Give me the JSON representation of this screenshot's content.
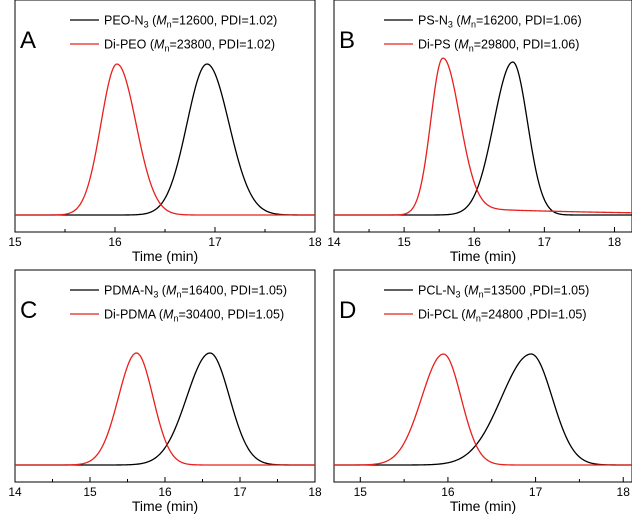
{
  "chart_data": [
    {
      "type": "line",
      "panel_label": "A",
      "xlabel": "Time (min)",
      "xlim": [
        15,
        18
      ],
      "xticks": [
        "15",
        "16",
        "17",
        "18"
      ],
      "grid": false,
      "legend_position": "top-right",
      "series": [
        {
          "name": "PEO-N3",
          "legend": {
            "pre": "PEO-N",
            "sub": "3",
            "open": " (",
            "m": "M",
            "n": "n",
            "rest": "=12600, PDI=1.02)"
          },
          "color": "#000000",
          "peak": 16.92,
          "sl": 0.2,
          "sr": 0.22,
          "base": 0.0
        },
        {
          "name": "Di-PEO",
          "legend": {
            "pre": "Di-PEO",
            "sub": "",
            "open": " (",
            "m": "M",
            "n": "n",
            "rest": "=23800, PDI=1.02)"
          },
          "color": "#e8201e",
          "peak": 16.02,
          "sl": 0.16,
          "sr": 0.19,
          "base": 0.0
        }
      ]
    },
    {
      "type": "line",
      "panel_label": "B",
      "xlabel": "Time (min)",
      "xlim": [
        14,
        18.25
      ],
      "xticks": [
        "14",
        "15",
        "16",
        "17",
        "18"
      ],
      "grid": false,
      "legend_position": "top-right",
      "series": [
        {
          "name": "PS-N3",
          "legend": {
            "pre": "PS-N",
            "sub": "3",
            "open": " (",
            "m": "M",
            "n": "n",
            "rest": "=16200, PDI=1.06)"
          },
          "color": "#000000",
          "peak": 16.55,
          "sl": 0.27,
          "sr": 0.21,
          "base": 0.0
        },
        {
          "name": "Di-PS",
          "legend": {
            "pre": "Di-PS",
            "sub": "",
            "open": " (",
            "m": "M",
            "n": "n",
            "rest": "=29800, PDI=1.06)"
          },
          "color": "#e8201e",
          "peak": 15.55,
          "sl": 0.17,
          "sr": 0.24,
          "base": 0.05
        }
      ]
    },
    {
      "type": "line",
      "panel_label": "C",
      "xlabel": "Time (min)",
      "xlim": [
        14,
        18
      ],
      "xticks": [
        "14",
        "15",
        "16",
        "17",
        "18"
      ],
      "grid": false,
      "legend_position": "top-right",
      "series": [
        {
          "name": "PDMA-N3",
          "legend": {
            "pre": "PDMA-N",
            "sub": "3",
            "open": " (",
            "m": "M",
            "n": "n",
            "rest": "=16400, PDI=1.05)"
          },
          "color": "#000000",
          "peak": 16.6,
          "sl": 0.31,
          "sr": 0.26,
          "base": 0.0
        },
        {
          "name": "Di-PDMA",
          "legend": {
            "pre": "Di-PDMA",
            "sub": "",
            "open": " (",
            "m": "M",
            "n": "n",
            "rest": "=30400, PDI=1.05)"
          },
          "color": "#e8201e",
          "peak": 15.62,
          "sl": 0.24,
          "sr": 0.22,
          "base": 0.0
        }
      ]
    },
    {
      "type": "line",
      "panel_label": "D",
      "xlabel": "Time (min)",
      "xlim": [
        14.7,
        18.1
      ],
      "xticks": [
        "15",
        "16",
        "17",
        "18"
      ],
      "grid": false,
      "legend_position": "top-right",
      "series": [
        {
          "name": "PCL-N3",
          "legend": {
            "pre": "PCL-N",
            "sub": "3",
            "open": " (",
            "m": "M",
            "n": "n",
            "rest": "=13500 ,PDI=1.05)"
          },
          "color": "#000000",
          "peak": 16.95,
          "sl": 0.34,
          "sr": 0.24,
          "base": 0.0
        },
        {
          "name": "Di-PCL",
          "legend": {
            "pre": "Di-PCL",
            "sub": "",
            "open": " (",
            "m": "M",
            "n": "n",
            "rest": "=24800 ,PDI=1.05)"
          },
          "color": "#e8201e",
          "peak": 15.95,
          "sl": 0.25,
          "sr": 0.2,
          "base": 0.0
        }
      ]
    }
  ]
}
